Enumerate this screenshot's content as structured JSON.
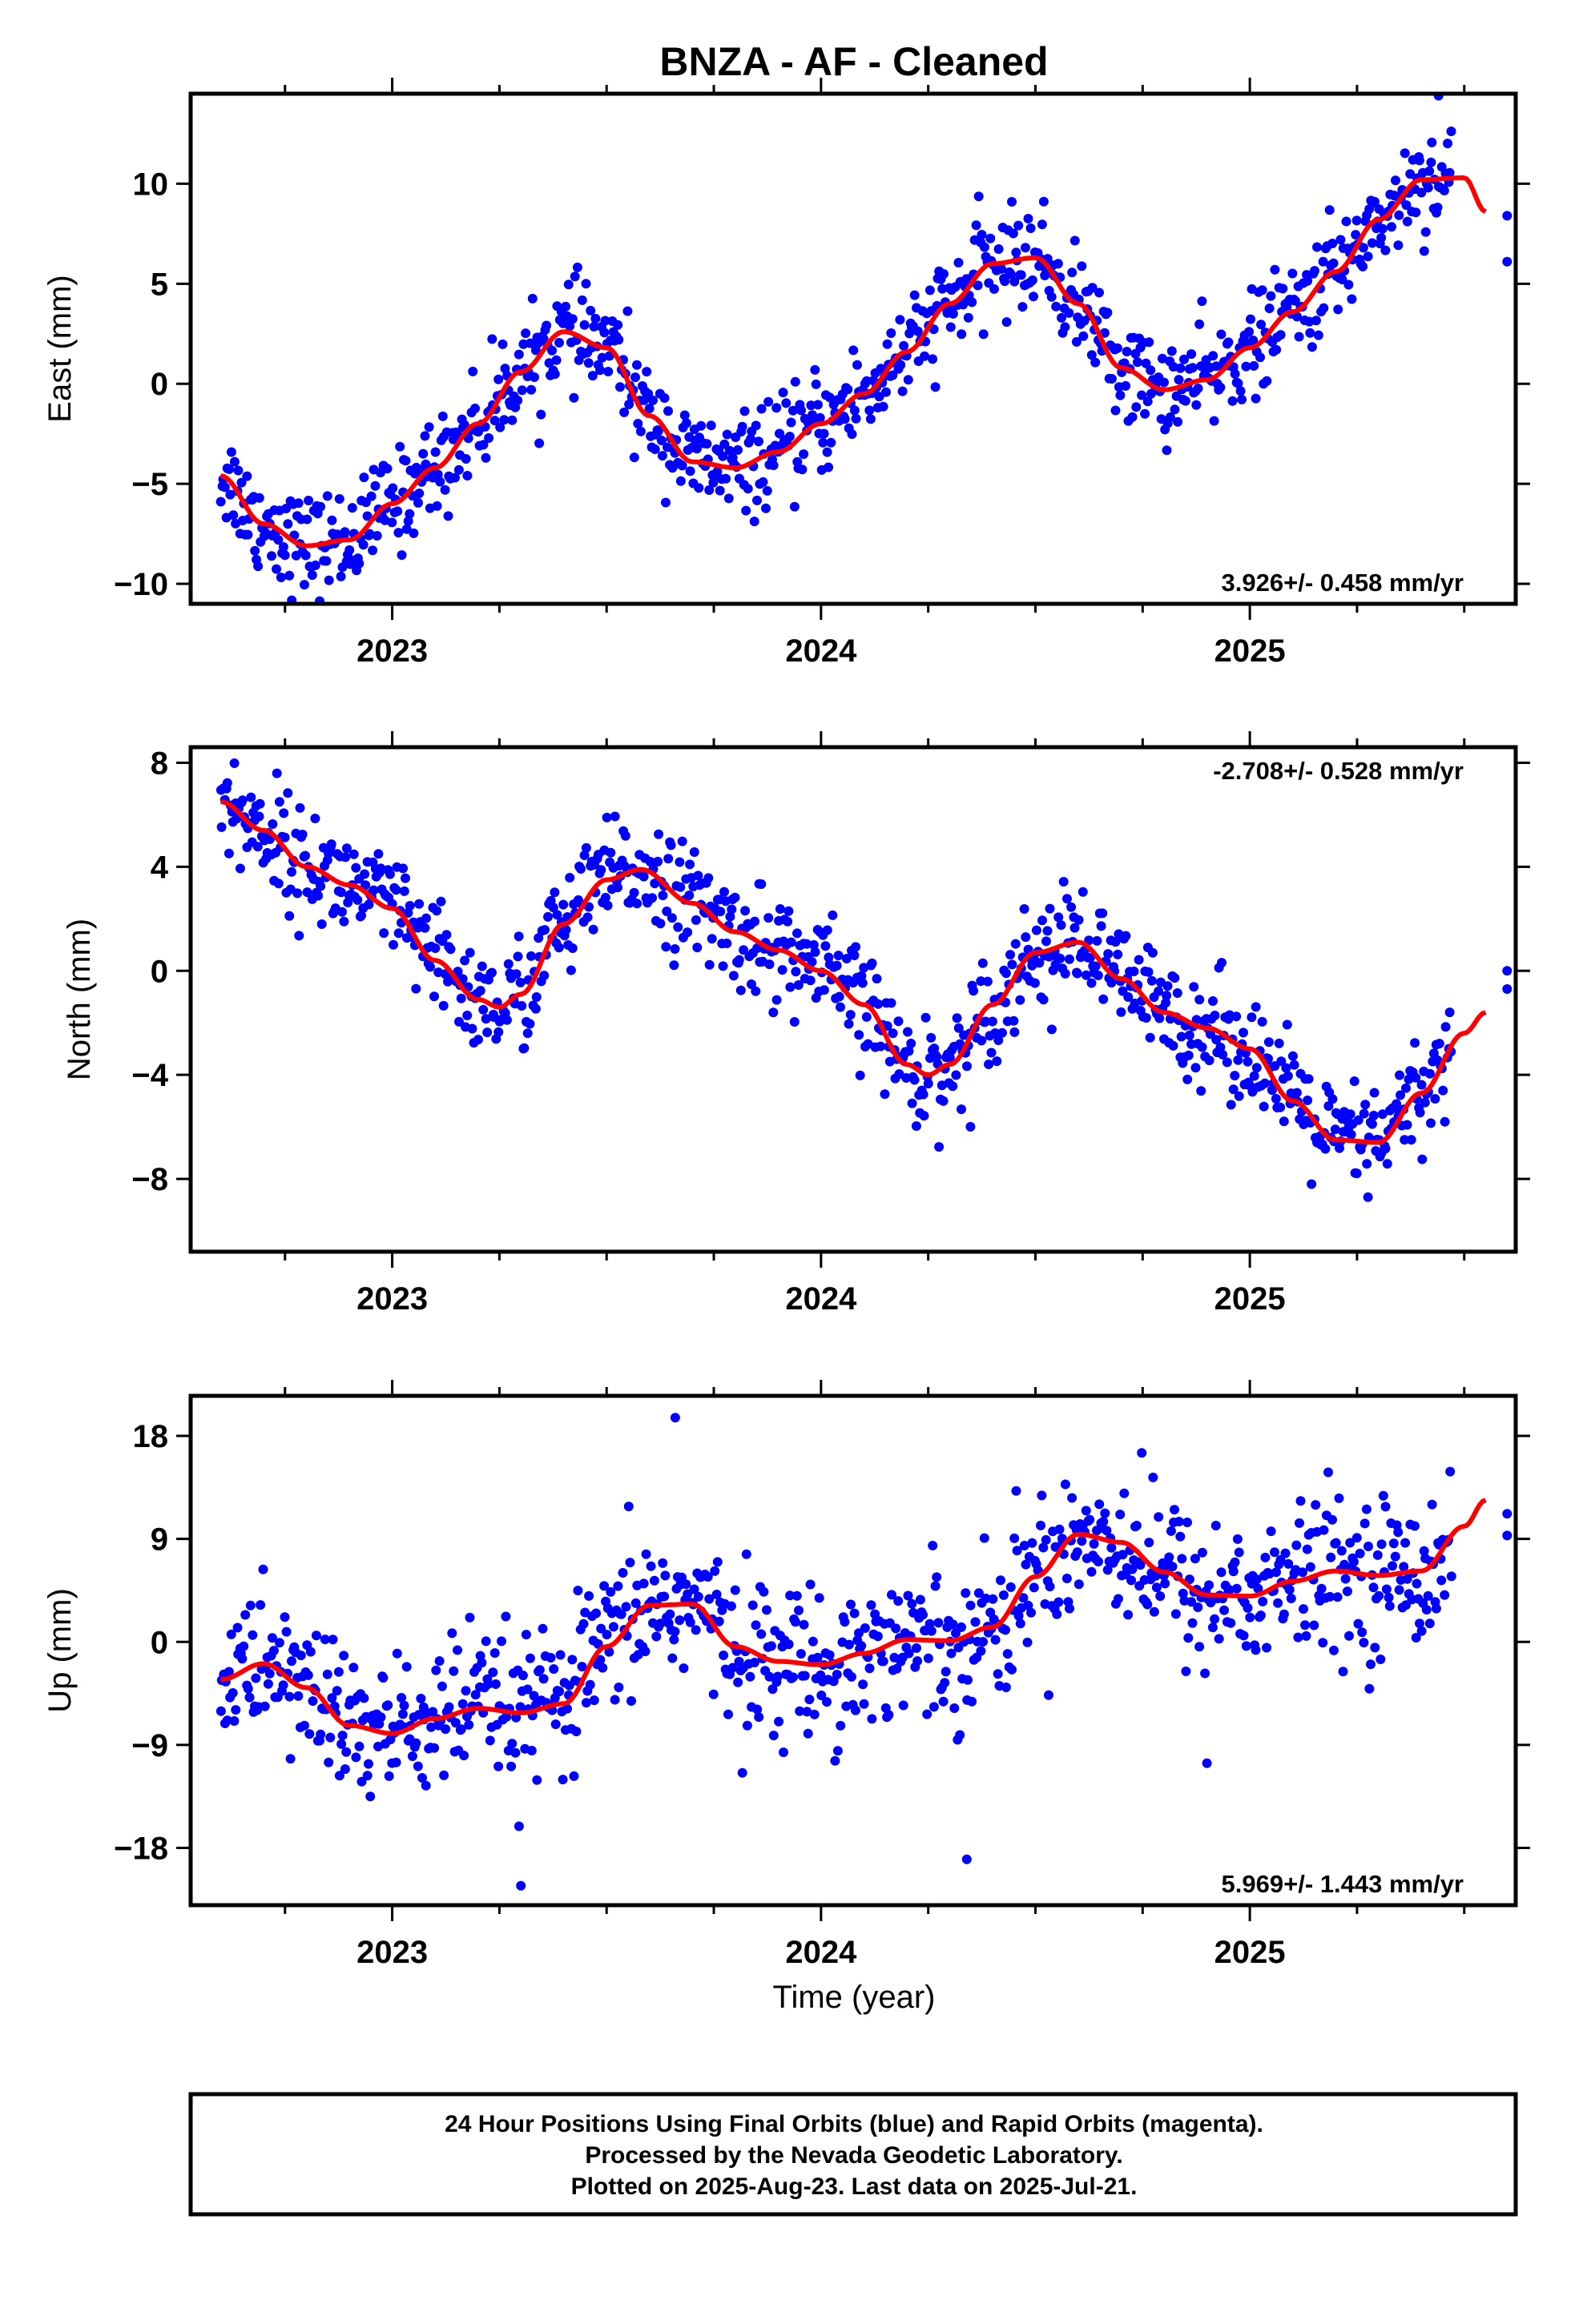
{
  "title": "BNZA  - AF - Cleaned",
  "xlabel": "Time (year)",
  "footer": {
    "line1": "24 Hour Positions Using Final Orbits (blue) and Rapid Orbits (magenta).",
    "line2": "Processed by the Nevada Geodetic Laboratory.",
    "line3": "Plotted on 2025-Aug-23. Last data on 2025-Jul-21."
  },
  "colors": {
    "points": "#0000ff",
    "fit": "#ff0000",
    "frame": "#000000"
  },
  "chart_data": [
    {
      "type": "scatter",
      "ylabel": "East (mm)",
      "rate_label": "3.926+/- 0.458 mm/yr",
      "xlim": [
        2022.53,
        2025.62
      ],
      "ylim": [
        -11,
        14.5
      ],
      "xticks": [
        2023,
        2024,
        2025
      ],
      "yticks": [
        -10,
        -5,
        0,
        5,
        10
      ],
      "grid": false,
      "fit_curve": {
        "x": [
          2022.6,
          2022.7,
          2022.8,
          2022.9,
          2023.0,
          2023.1,
          2023.2,
          2023.3,
          2023.4,
          2023.5,
          2023.6,
          2023.7,
          2023.8,
          2023.9,
          2024.0,
          2024.1,
          2024.2,
          2024.3,
          2024.4,
          2024.5,
          2024.6,
          2024.7,
          2024.8,
          2024.9,
          2025.0,
          2025.1,
          2025.2,
          2025.3,
          2025.4,
          2025.5,
          2025.55
        ],
        "y": [
          -4.6,
          -7.0,
          -8.1,
          -7.8,
          -6.0,
          -4.2,
          -2.0,
          0.6,
          2.6,
          1.8,
          -1.6,
          -3.9,
          -4.2,
          -3.4,
          -2.0,
          -0.5,
          1.6,
          4.0,
          6.0,
          6.3,
          4.0,
          0.8,
          -0.3,
          0.2,
          1.8,
          3.6,
          5.6,
          8.2,
          10.2,
          10.3,
          8.6
        ]
      },
      "trend": {
        "x0": 2022.6,
        "y0": -6.2,
        "slope": 3.926
      },
      "seasonal": {
        "a1": 2.3,
        "p1": -0.75,
        "a2": 0.6,
        "p2": 0.3
      },
      "scatter_sigma": 1.25,
      "extra_points": {
        "x": [
          2025.44,
          2025.6,
          2025.6
        ],
        "y": [
          14.4,
          8.4,
          6.1
        ]
      }
    },
    {
      "type": "scatter",
      "ylabel": "North (mm)",
      "rate_label": "-2.708+/- 0.528 mm/yr",
      "xlim": [
        2022.53,
        2025.62
      ],
      "ylim": [
        -10.8,
        8.6
      ],
      "xticks": [
        2023,
        2024,
        2025
      ],
      "yticks": [
        -8,
        -4,
        0,
        4,
        8
      ],
      "grid": false,
      "fit_curve": {
        "x": [
          2022.6,
          2022.7,
          2022.8,
          2022.9,
          2023.0,
          2023.1,
          2023.2,
          2023.25,
          2023.3,
          2023.4,
          2023.5,
          2023.58,
          2023.7,
          2023.8,
          2023.9,
          2024.0,
          2024.1,
          2024.2,
          2024.25,
          2024.3,
          2024.4,
          2024.5,
          2024.6,
          2024.7,
          2024.8,
          2024.9,
          2025.0,
          2025.1,
          2025.2,
          2025.3,
          2025.4,
          2025.5,
          2025.55
        ],
        "y": [
          6.5,
          5.4,
          4.0,
          3.3,
          2.4,
          0.4,
          -1.1,
          -1.4,
          -0.9,
          1.8,
          3.5,
          3.9,
          2.6,
          1.5,
          0.8,
          0.0,
          -1.3,
          -3.6,
          -4.0,
          -3.6,
          -1.3,
          0.7,
          1.1,
          -0.3,
          -1.6,
          -2.2,
          -3.0,
          -5.0,
          -6.5,
          -6.6,
          -4.7,
          -2.4,
          -1.6
        ]
      },
      "trend": {
        "x0": 2022.6,
        "y0": 4.6,
        "slope": -2.708
      },
      "seasonal": {
        "a1": 2.3,
        "p1": -0.5,
        "a2": 0.5,
        "p2": 0.7
      },
      "scatter_sigma": 1.05,
      "extra_points": {
        "x": [
          2025.6,
          2025.6
        ],
        "y": [
          0.0,
          -0.7
        ]
      }
    },
    {
      "type": "scatter",
      "ylabel": "Up (mm)",
      "rate_label": "5.969+/- 1.443 mm/yr",
      "xlim": [
        2022.53,
        2025.62
      ],
      "ylim": [
        -23,
        21.5
      ],
      "xticks": [
        2023,
        2024,
        2025
      ],
      "yticks": [
        -18,
        -9,
        0,
        9,
        18
      ],
      "grid": false,
      "fit_curve": {
        "x": [
          2022.6,
          2022.7,
          2022.8,
          2022.9,
          2023.0,
          2023.1,
          2023.2,
          2023.3,
          2023.4,
          2023.5,
          2023.6,
          2023.7,
          2023.8,
          2023.9,
          2024.0,
          2024.1,
          2024.2,
          2024.3,
          2024.4,
          2024.5,
          2024.6,
          2024.7,
          2024.8,
          2024.9,
          2025.0,
          2025.1,
          2025.2,
          2025.3,
          2025.4,
          2025.5,
          2025.55
        ],
        "y": [
          -3.3,
          -1.9,
          -4.0,
          -7.3,
          -8.0,
          -6.7,
          -5.8,
          -6.2,
          -5.4,
          -0.4,
          3.2,
          3.3,
          -0.4,
          -1.7,
          -2.0,
          -1.0,
          0.2,
          0.1,
          1.3,
          5.7,
          9.4,
          8.7,
          6.1,
          4.1,
          4.0,
          5.3,
          6.2,
          5.8,
          6.2,
          10.1,
          12.4
        ]
      },
      "trend": {
        "x0": 2022.6,
        "y0": -8.5,
        "slope": 5.969
      },
      "seasonal": {
        "a1": 3.5,
        "p1": 1.4,
        "a2": 1.2,
        "p2": -0.4
      },
      "scatter_sigma": 3.3,
      "extra_points": {
        "x": [
          2023.66,
          2024.34,
          2024.9,
          2023.3,
          2025.6,
          2025.6
        ],
        "y": [
          19.6,
          -19.0,
          -10.6,
          -21.3,
          11.2,
          9.3
        ]
      }
    }
  ]
}
